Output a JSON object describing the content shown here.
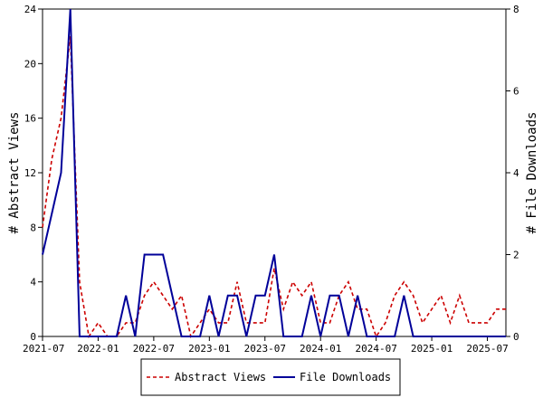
{
  "chart_data": {
    "type": "line",
    "title": "",
    "xlabel": "",
    "ylabel": "# Abstract Views",
    "y2label": "# File Downloads",
    "ylim": [
      0,
      24
    ],
    "y2lim": [
      0,
      8
    ],
    "yticks": [
      "0",
      "4",
      "8",
      "12",
      "16",
      "20",
      "24"
    ],
    "y2ticks": [
      "0",
      "2",
      "4",
      "6",
      "8"
    ],
    "xticks": [
      "2021-07",
      "2022-01",
      "2022-07",
      "2023-01",
      "2023-07",
      "2024-01",
      "2024-07",
      "2025-01",
      "2025-07"
    ],
    "x_months": [
      "2021-07",
      "2021-08",
      "2021-09",
      "2021-10",
      "2021-11",
      "2021-12",
      "2022-01",
      "2022-02",
      "2022-03",
      "2022-04",
      "2022-05",
      "2022-06",
      "2022-07",
      "2022-08",
      "2022-09",
      "2022-10",
      "2022-11",
      "2022-12",
      "2023-01",
      "2023-02",
      "2023-03",
      "2023-04",
      "2023-05",
      "2023-06",
      "2023-07",
      "2023-08",
      "2023-09",
      "2023-10",
      "2023-11",
      "2023-12",
      "2024-01",
      "2024-02",
      "2024-03",
      "2024-04",
      "2024-05",
      "2024-06",
      "2024-07",
      "2024-08",
      "2024-09",
      "2024-10",
      "2024-11",
      "2024-12",
      "2025-01",
      "2025-02",
      "2025-03",
      "2025-04",
      "2025-05",
      "2025-06",
      "2025-07",
      "2025-08",
      "2025-09"
    ],
    "series": [
      {
        "name": "Abstract Views",
        "axis": "left",
        "color": "#cc0000",
        "dash": true,
        "values": [
          8,
          13,
          16,
          22,
          4,
          0,
          1,
          0,
          0,
          1,
          1,
          3,
          4,
          3,
          2,
          3,
          0,
          1,
          2,
          1,
          1,
          4,
          1,
          1,
          1,
          5,
          2,
          4,
          3,
          4,
          1,
          1,
          3,
          4,
          2,
          2,
          0,
          1,
          3,
          4,
          3,
          1,
          2,
          3,
          1,
          3,
          1,
          1,
          1,
          2,
          2
        ]
      },
      {
        "name": "File Downloads",
        "axis": "right",
        "color": "#000099",
        "dash": false,
        "values": [
          2,
          3,
          4,
          8,
          0,
          0,
          0,
          0,
          0,
          1,
          0,
          2,
          2,
          2,
          1,
          0,
          0,
          0,
          1,
          0,
          1,
          1,
          0,
          1,
          1,
          2,
          0,
          0,
          0,
          1,
          0,
          1,
          1,
          0,
          1,
          0,
          0,
          0,
          0,
          1,
          0,
          0,
          0,
          0,
          0,
          0,
          0,
          0,
          0,
          0,
          0
        ]
      }
    ],
    "legend_position": "bottom",
    "grid": false
  }
}
